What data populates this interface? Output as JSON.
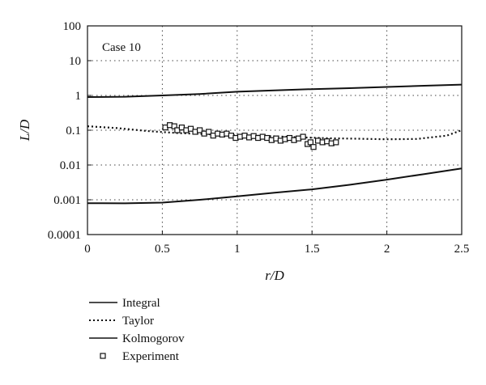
{
  "chart_data": {
    "type": "line",
    "xlabel": "r/D",
    "ylabel": "L/D",
    "annotation": "Case 10",
    "xlim": [
      0,
      2.5
    ],
    "ylim": [
      0.0001,
      100
    ],
    "yscale": "log",
    "grid": true,
    "x_ticks": [
      "0",
      "0.5",
      "1",
      "1.5",
      "2",
      "2.5"
    ],
    "y_ticks": [
      "0.0001",
      "0.001",
      "0.01",
      "0.1",
      "1",
      "10",
      "100"
    ],
    "legend_position": "bottom-left",
    "series": [
      {
        "name": "Integral",
        "style": "solid",
        "x": [
          0,
          0.25,
          0.5,
          0.75,
          1.0,
          1.25,
          1.5,
          1.75,
          2.0,
          2.25,
          2.5
        ],
        "y": [
          0.9,
          0.92,
          1.0,
          1.1,
          1.28,
          1.4,
          1.52,
          1.62,
          1.75,
          1.9,
          2.05
        ]
      },
      {
        "name": "Taylor",
        "style": "dotted",
        "x": [
          0,
          0.2,
          0.4,
          0.6,
          0.8,
          1.0,
          1.2,
          1.4,
          1.6,
          1.8,
          2.0,
          2.2,
          2.4,
          2.5
        ],
        "y": [
          0.13,
          0.115,
          0.095,
          0.083,
          0.077,
          0.072,
          0.068,
          0.063,
          0.059,
          0.057,
          0.055,
          0.056,
          0.07,
          0.1
        ]
      },
      {
        "name": "Kolmogorov",
        "style": "solid",
        "x": [
          0,
          0.25,
          0.5,
          0.75,
          1.0,
          1.25,
          1.5,
          1.75,
          2.0,
          2.25,
          2.5
        ],
        "y": [
          0.0008,
          0.00079,
          0.00083,
          0.001,
          0.00125,
          0.0016,
          0.002,
          0.0027,
          0.0038,
          0.0055,
          0.008
        ]
      },
      {
        "name": "Experiment",
        "style": "markers",
        "x": [
          0.52,
          0.55,
          0.58,
          0.6,
          0.63,
          0.66,
          0.69,
          0.72,
          0.75,
          0.78,
          0.81,
          0.84,
          0.87,
          0.9,
          0.93,
          0.96,
          0.99,
          1.02,
          1.05,
          1.08,
          1.11,
          1.14,
          1.17,
          1.2,
          1.23,
          1.26,
          1.29,
          1.32,
          1.35,
          1.38,
          1.41,
          1.44,
          1.47,
          1.49,
          1.51,
          1.54,
          1.57,
          1.6,
          1.63,
          1.66
        ],
        "y": [
          0.12,
          0.14,
          0.13,
          0.1,
          0.12,
          0.1,
          0.11,
          0.09,
          0.1,
          0.08,
          0.09,
          0.07,
          0.08,
          0.075,
          0.08,
          0.07,
          0.06,
          0.065,
          0.07,
          0.062,
          0.068,
          0.06,
          0.065,
          0.06,
          0.052,
          0.058,
          0.05,
          0.055,
          0.06,
          0.052,
          0.058,
          0.065,
          0.04,
          0.045,
          0.033,
          0.05,
          0.045,
          0.048,
          0.042,
          0.045
        ]
      }
    ]
  }
}
